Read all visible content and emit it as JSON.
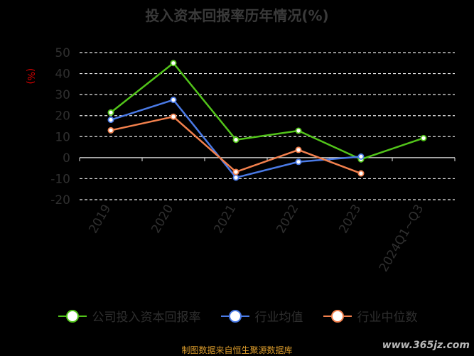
{
  "title": "投入资本回报率历年情况(%)",
  "unit_label": "(%)",
  "footer_source": "制图数据来自恒生聚源数据库",
  "watermark": "www.365jz.com",
  "colors": {
    "background": "#000000",
    "axis": "#e8e8e8",
    "grid": "#e8e8e8",
    "tick_text": "#2f2f2f",
    "unit": "#e60000"
  },
  "chart_data": {
    "type": "line",
    "categories": [
      "2019",
      "2020",
      "2021",
      "2022",
      "2023",
      "2024Q1~Q3"
    ],
    "ylim": [
      -20,
      50
    ],
    "yticks": [
      -20,
      -10,
      0,
      10,
      20,
      30,
      40,
      50
    ],
    "grid": true,
    "legend_position": "bottom",
    "series": [
      {
        "name": "公司投入资本回报率",
        "color": "#52c41a",
        "values": [
          21.5,
          45,
          8.5,
          12.8,
          -0.8,
          9.3
        ]
      },
      {
        "name": "行业均值",
        "color": "#4a7ae6",
        "values": [
          18,
          27.5,
          -9.5,
          -2,
          0.5,
          null
        ]
      },
      {
        "name": "行业中位数",
        "color": "#f2804d",
        "values": [
          13,
          19.5,
          -6.8,
          3.7,
          -7.5,
          null
        ]
      }
    ]
  }
}
